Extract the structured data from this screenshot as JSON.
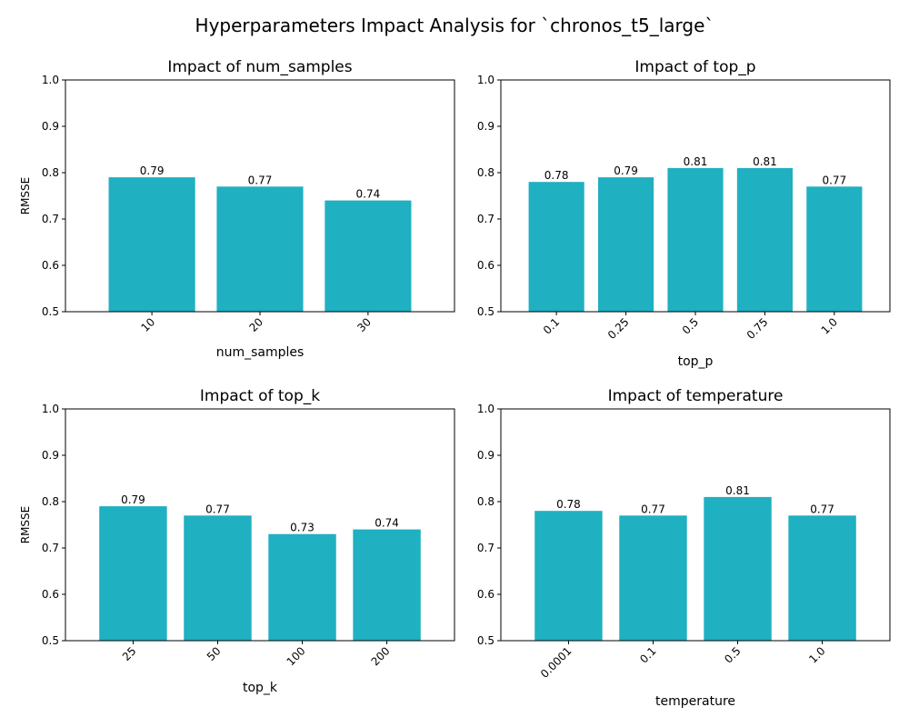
{
  "figure_title": "Hyperparameters Impact Analysis for `chronos_t5_large`",
  "bar_color": "#1fb0c1",
  "chart_data": [
    {
      "type": "bar",
      "title": "Impact of num_samples",
      "xlabel": "num_samples",
      "ylabel": "RMSSE",
      "ylim": [
        0.5,
        1.0
      ],
      "yticks": [
        "0.5",
        "0.6",
        "0.7",
        "0.8",
        "0.9",
        "1.0"
      ],
      "categories": [
        "10",
        "20",
        "30"
      ],
      "values": [
        0.79,
        0.77,
        0.74
      ],
      "value_labels": [
        "0.79",
        "0.77",
        "0.74"
      ]
    },
    {
      "type": "bar",
      "title": "Impact of top_p",
      "xlabel": "top_p",
      "ylabel": "",
      "ylim": [
        0.5,
        1.0
      ],
      "yticks": [
        "0.5",
        "0.6",
        "0.7",
        "0.8",
        "0.9",
        "1.0"
      ],
      "categories": [
        "0.1",
        "0.25",
        "0.5",
        "0.75",
        "1.0"
      ],
      "values": [
        0.78,
        0.79,
        0.81,
        0.81,
        0.77
      ],
      "value_labels": [
        "0.78",
        "0.79",
        "0.81",
        "0.81",
        "0.77"
      ]
    },
    {
      "type": "bar",
      "title": "Impact of top_k",
      "xlabel": "top_k",
      "ylabel": "RMSSE",
      "ylim": [
        0.5,
        1.0
      ],
      "yticks": [
        "0.5",
        "0.6",
        "0.7",
        "0.8",
        "0.9",
        "1.0"
      ],
      "categories": [
        "25",
        "50",
        "100",
        "200"
      ],
      "values": [
        0.79,
        0.77,
        0.73,
        0.74
      ],
      "value_labels": [
        "0.79",
        "0.77",
        "0.73",
        "0.74"
      ]
    },
    {
      "type": "bar",
      "title": "Impact of temperature",
      "xlabel": "temperature",
      "ylabel": "",
      "ylim": [
        0.5,
        1.0
      ],
      "yticks": [
        "0.5",
        "0.6",
        "0.7",
        "0.8",
        "0.9",
        "1.0"
      ],
      "categories": [
        "0.0001",
        "0.1",
        "0.5",
        "1.0"
      ],
      "values": [
        0.78,
        0.77,
        0.81,
        0.77
      ],
      "value_labels": [
        "0.78",
        "0.77",
        "0.81",
        "0.77"
      ]
    }
  ]
}
